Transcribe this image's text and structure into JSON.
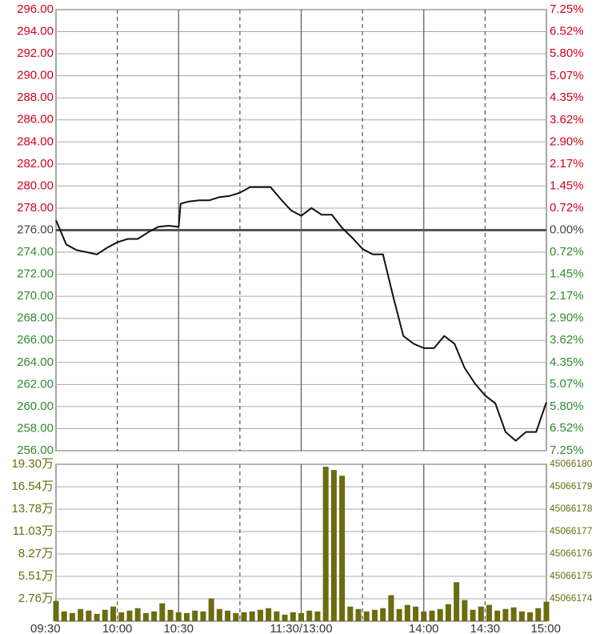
{
  "chart_data": [
    {
      "type": "line",
      "base": 276,
      "color": "#111111",
      "up_color": "#d0021b",
      "down_color": "#2e8b2e",
      "flat_color": "#444444",
      "x": [
        0,
        5,
        10,
        15,
        20,
        25,
        30,
        35,
        40,
        45,
        50,
        55,
        60,
        61,
        65,
        70,
        75,
        80,
        85,
        90,
        95,
        100,
        105,
        110,
        115,
        120,
        125,
        130,
        135,
        140,
        145,
        150,
        155,
        160,
        165,
        170,
        175,
        180,
        185,
        190,
        195,
        200,
        205,
        210,
        215,
        220,
        225,
        230,
        235,
        240
      ],
      "values": [
        276.9,
        274.7,
        274.2,
        274.0,
        273.8,
        274.4,
        274.9,
        275.2,
        275.2,
        275.8,
        276.3,
        276.4,
        276.3,
        278.4,
        278.6,
        278.7,
        278.7,
        279.0,
        279.1,
        279.4,
        279.9,
        279.9,
        279.9,
        278.8,
        277.8,
        277.3,
        278.0,
        277.4,
        277.4,
        276.2,
        275.3,
        274.3,
        273.8,
        273.8,
        270.0,
        266.4,
        265.7,
        265.3,
        265.3,
        266.4,
        265.7,
        263.5,
        262.1,
        261.0,
        260.3,
        257.7,
        256.9,
        257.7,
        257.7,
        260.4
      ],
      "xlim": [
        0,
        240
      ],
      "xticks": [
        {
          "value": 0,
          "label": "09:30"
        },
        {
          "value": 30,
          "label": "10:00"
        },
        {
          "value": 60,
          "label": "10:30"
        },
        {
          "value": 90,
          "label": null
        },
        {
          "value": 120,
          "label": "11:30/13:00"
        },
        {
          "value": 150,
          "label": null
        },
        {
          "value": 180,
          "label": "14:00"
        },
        {
          "value": 210,
          "label": "14:30"
        },
        {
          "value": 240,
          "label": "15:00"
        }
      ],
      "ylim": [
        256,
        296
      ],
      "yticks": [
        {
          "value": 296,
          "label": "296.00"
        },
        {
          "value": 294,
          "label": "294.00"
        },
        {
          "value": 292,
          "label": "292.00"
        },
        {
          "value": 290,
          "label": "290.00"
        },
        {
          "value": 288,
          "label": "288.00"
        },
        {
          "value": 286,
          "label": "286.00"
        },
        {
          "value": 284,
          "label": "284.00"
        },
        {
          "value": 282,
          "label": "282.00"
        },
        {
          "value": 280,
          "label": "280.00"
        },
        {
          "value": 278,
          "label": "278.00"
        },
        {
          "value": 276,
          "label": "276.00"
        },
        {
          "value": 274,
          "label": "274.00"
        },
        {
          "value": 272,
          "label": "272.00"
        },
        {
          "value": 270,
          "label": "270.00"
        },
        {
          "value": 268,
          "label": "268.00"
        },
        {
          "value": 266,
          "label": "266.00"
        },
        {
          "value": 264,
          "label": "264.00"
        },
        {
          "value": 262,
          "label": "262.00"
        },
        {
          "value": 260,
          "label": "260.00"
        },
        {
          "value": 258,
          "label": "258.00"
        },
        {
          "value": 256,
          "label": "256.00"
        }
      ],
      "y2lim": [
        -7.25,
        7.25
      ],
      "y2ticks": [
        {
          "value": 7.25,
          "label": "7.25%"
        },
        {
          "value": 6.52,
          "label": "6.52%"
        },
        {
          "value": 5.8,
          "label": "5.80%"
        },
        {
          "value": 5.07,
          "label": "5.07%"
        },
        {
          "value": 4.35,
          "label": "4.35%"
        },
        {
          "value": 3.62,
          "label": "3.62%"
        },
        {
          "value": 2.9,
          "label": "2.90%"
        },
        {
          "value": 2.17,
          "label": "2.17%"
        },
        {
          "value": 1.45,
          "label": "1.45%"
        },
        {
          "value": 0.72,
          "label": "0.72%"
        },
        {
          "value": 0,
          "label": "0.00%"
        },
        {
          "value": -0.72,
          "label": "0.72%"
        },
        {
          "value": -1.45,
          "label": "1.45%"
        },
        {
          "value": -2.17,
          "label": "2.17%"
        },
        {
          "value": -2.9,
          "label": "2.90%"
        },
        {
          "value": -3.62,
          "label": "3.62%"
        },
        {
          "value": -4.35,
          "label": "4.35%"
        },
        {
          "value": -5.07,
          "label": "5.07%"
        },
        {
          "value": -5.8,
          "label": "5.80%"
        },
        {
          "value": -6.52,
          "label": "6.52%"
        },
        {
          "value": -7.25,
          "label": "7.25%"
        }
      ],
      "grid": true
    },
    {
      "type": "bar",
      "color": "#6b6b10",
      "x": [
        0,
        4,
        8,
        12,
        16,
        20,
        24,
        28,
        32,
        36,
        40,
        44,
        48,
        52,
        56,
        60,
        64,
        68,
        72,
        76,
        80,
        84,
        88,
        92,
        96,
        100,
        104,
        108,
        112,
        116,
        120,
        124,
        128,
        132,
        136,
        140,
        144,
        148,
        152,
        156,
        160,
        164,
        168,
        172,
        176,
        180,
        184,
        188,
        192,
        196,
        200,
        204,
        208,
        212,
        216,
        220,
        224,
        228,
        232,
        236,
        240
      ],
      "values": [
        2.5,
        1.2,
        1.0,
        1.5,
        1.3,
        0.9,
        1.4,
        1.8,
        1.1,
        1.3,
        1.6,
        1.0,
        1.2,
        2.2,
        1.4,
        1.1,
        1.0,
        1.3,
        1.2,
        2.8,
        1.5,
        1.3,
        1.0,
        1.1,
        1.2,
        1.4,
        1.6,
        1.2,
        0.8,
        1.1,
        1.0,
        1.3,
        1.2,
        19.0,
        18.6,
        17.9,
        1.8,
        1.5,
        1.2,
        1.4,
        1.6,
        3.2,
        1.5,
        2.0,
        1.8,
        1.2,
        1.3,
        1.5,
        2.1,
        4.8,
        2.6,
        1.4,
        1.8,
        2.0,
        1.3,
        1.5,
        1.7,
        1.2,
        1.1,
        1.6,
        2.4
      ],
      "xlim": [
        0,
        240
      ],
      "ylim": [
        0,
        19.3
      ],
      "yticks": [
        {
          "value": 19.3,
          "label": "19.30万"
        },
        {
          "value": 16.54,
          "label": "16.54万"
        },
        {
          "value": 13.78,
          "label": "13.78万"
        },
        {
          "value": 11.03,
          "label": "11.03万"
        },
        {
          "value": 8.27,
          "label": "8.27万"
        },
        {
          "value": 5.51,
          "label": "5.51万"
        },
        {
          "value": 2.76,
          "label": "2.76万"
        }
      ],
      "y2lim": [
        45066173,
        45066180
      ],
      "y2ticks": [
        45066180,
        45066179,
        45066178,
        45066177,
        45066176,
        45066175,
        45066174
      ],
      "grid": true
    }
  ]
}
